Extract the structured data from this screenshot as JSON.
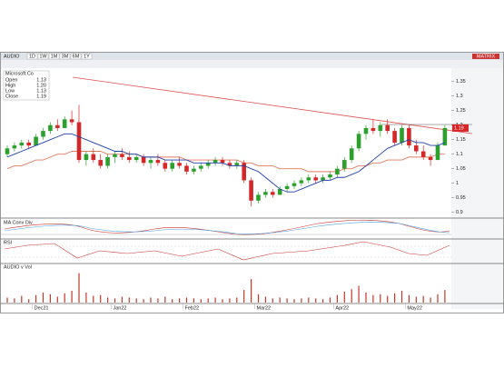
{
  "toolbar": {
    "symbol": "AUDIO",
    "buttons": [
      "1D",
      "1W",
      "1M",
      "3M",
      "6M",
      "1Y"
    ],
    "right": "MATRIX"
  },
  "info_box": {
    "title": "Microsoft Co",
    "rows": [
      [
        "Open",
        "1.13"
      ],
      [
        "High",
        "1.20"
      ],
      [
        "Low",
        "1.13"
      ],
      [
        "Close",
        "1.19"
      ]
    ]
  },
  "price_chart": {
    "ylim": [
      0.88,
      1.39
    ],
    "yticks": [
      0.9,
      0.95,
      1,
      1.05,
      1.1,
      1.15,
      1.2,
      1.25,
      1.3,
      1.35
    ],
    "last_price": "1.19",
    "candles": [
      [
        1.1,
        1.13,
        1.09,
        1.12
      ],
      [
        1.12,
        1.14,
        1.11,
        1.13
      ],
      [
        1.13,
        1.15,
        1.12,
        1.14
      ],
      [
        1.14,
        1.15,
        1.12,
        1.13
      ],
      [
        1.13,
        1.17,
        1.13,
        1.16
      ],
      [
        1.16,
        1.19,
        1.15,
        1.18
      ],
      [
        1.18,
        1.21,
        1.17,
        1.2
      ],
      [
        1.2,
        1.22,
        1.18,
        1.19
      ],
      [
        1.19,
        1.23,
        1.19,
        1.22
      ],
      [
        1.22,
        1.25,
        1.2,
        1.21
      ],
      [
        1.21,
        1.27,
        1.07,
        1.08
      ],
      [
        1.08,
        1.11,
        1.06,
        1.1
      ],
      [
        1.1,
        1.12,
        1.07,
        1.08
      ],
      [
        1.08,
        1.1,
        1.05,
        1.06
      ],
      [
        1.06,
        1.1,
        1.05,
        1.09
      ],
      [
        1.09,
        1.11,
        1.07,
        1.1
      ],
      [
        1.1,
        1.12,
        1.08,
        1.09
      ],
      [
        1.09,
        1.11,
        1.07,
        1.08
      ],
      [
        1.08,
        1.1,
        1.07,
        1.09
      ],
      [
        1.09,
        1.1,
        1.06,
        1.07
      ],
      [
        1.07,
        1.09,
        1.05,
        1.08
      ],
      [
        1.08,
        1.1,
        1.06,
        1.07
      ],
      [
        1.07,
        1.08,
        1.04,
        1.05
      ],
      [
        1.05,
        1.08,
        1.04,
        1.07
      ],
      [
        1.07,
        1.09,
        1.05,
        1.06
      ],
      [
        1.06,
        1.07,
        1.03,
        1.04
      ],
      [
        1.04,
        1.06,
        1.03,
        1.05
      ],
      [
        1.05,
        1.07,
        1.04,
        1.06
      ],
      [
        1.06,
        1.08,
        1.05,
        1.07
      ],
      [
        1.07,
        1.09,
        1.06,
        1.08
      ],
      [
        1.08,
        1.09,
        1.06,
        1.07
      ],
      [
        1.07,
        1.08,
        1.05,
        1.06
      ],
      [
        1.06,
        1.08,
        1.05,
        1.07
      ],
      [
        1.07,
        1.08,
        1.0,
        1.01
      ],
      [
        1.01,
        1.02,
        0.92,
        0.94
      ],
      [
        0.94,
        0.97,
        0.93,
        0.96
      ],
      [
        0.96,
        0.98,
        0.95,
        0.97
      ],
      [
        0.97,
        0.98,
        0.95,
        0.96
      ],
      [
        0.96,
        0.99,
        0.96,
        0.98
      ],
      [
        0.98,
        1.0,
        0.97,
        0.99
      ],
      [
        0.99,
        1.01,
        0.98,
        1.0
      ],
      [
        1.0,
        1.02,
        0.99,
        1.01
      ],
      [
        1.01,
        1.03,
        1.0,
        1.02
      ],
      [
        1.02,
        1.03,
        1.0,
        1.01
      ],
      [
        1.01,
        1.03,
        1.0,
        1.02
      ],
      [
        1.02,
        1.04,
        1.01,
        1.03
      ],
      [
        1.03,
        1.06,
        1.02,
        1.05
      ],
      [
        1.05,
        1.09,
        1.04,
        1.08
      ],
      [
        1.08,
        1.13,
        1.07,
        1.12
      ],
      [
        1.12,
        1.18,
        1.11,
        1.17
      ],
      [
        1.17,
        1.2,
        1.15,
        1.19
      ],
      [
        1.19,
        1.22,
        1.17,
        1.18
      ],
      [
        1.18,
        1.21,
        1.16,
        1.2
      ],
      [
        1.2,
        1.22,
        1.17,
        1.18
      ],
      [
        1.18,
        1.19,
        1.13,
        1.14
      ],
      [
        1.14,
        1.2,
        1.13,
        1.19
      ],
      [
        1.19,
        1.2,
        1.12,
        1.13
      ],
      [
        1.13,
        1.15,
        1.1,
        1.11
      ],
      [
        1.11,
        1.13,
        1.08,
        1.09
      ],
      [
        1.09,
        1.1,
        1.06,
        1.08
      ],
      [
        1.08,
        1.14,
        1.08,
        1.13
      ],
      [
        1.13,
        1.2,
        1.13,
        1.19
      ]
    ],
    "ma_short": [
      1.09,
      1.1,
      1.11,
      1.12,
      1.13,
      1.14,
      1.15,
      1.16,
      1.17,
      1.17,
      1.16,
      1.15,
      1.14,
      1.13,
      1.12,
      1.11,
      1.11,
      1.1,
      1.1,
      1.09,
      1.09,
      1.09,
      1.08,
      1.08,
      1.08,
      1.08,
      1.07,
      1.07,
      1.07,
      1.07,
      1.07,
      1.06,
      1.06,
      1.06,
      1.05,
      1.04,
      1.02,
      1.0,
      0.98,
      0.97,
      0.97,
      0.98,
      0.99,
      1.0,
      1.01,
      1.01,
      1.02,
      1.02,
      1.03,
      1.04,
      1.06,
      1.08,
      1.1,
      1.12,
      1.13,
      1.14,
      1.15,
      1.14,
      1.14,
      1.13,
      1.13,
      1.14
    ],
    "ma_long": [
      1.05,
      1.06,
      1.06,
      1.07,
      1.08,
      1.08,
      1.09,
      1.1,
      1.1,
      1.11,
      1.11,
      1.11,
      1.11,
      1.11,
      1.1,
      1.1,
      1.1,
      1.1,
      1.1,
      1.09,
      1.09,
      1.09,
      1.09,
      1.09,
      1.09,
      1.08,
      1.08,
      1.08,
      1.08,
      1.08,
      1.08,
      1.08,
      1.08,
      1.07,
      1.07,
      1.06,
      1.06,
      1.06,
      1.05,
      1.05,
      1.05,
      1.05,
      1.04,
      1.04,
      1.04,
      1.04,
      1.04,
      1.05,
      1.05,
      1.06,
      1.06,
      1.07,
      1.07,
      1.08,
      1.08,
      1.08,
      1.09,
      1.09,
      1.09,
      1.09,
      1.1,
      1.1
    ]
  },
  "macd_panel": {
    "label": "MA Conv Div"
  },
  "rsi_panel": {
    "label": "RSI"
  },
  "volume_panel": {
    "label": "AUDIO v Vol",
    "ylim": [
      0,
      4
    ],
    "values": [
      0.6,
      0.5,
      0.8,
      0.4,
      0.9,
      1.2,
      1.0,
      0.7,
      1.1,
      1.4,
      3.5,
      1.2,
      0.8,
      0.9,
      0.6,
      0.5,
      0.7,
      0.6,
      0.5,
      0.4,
      0.6,
      0.5,
      0.7,
      0.4,
      0.5,
      0.6,
      0.5,
      0.4,
      0.5,
      0.6,
      0.4,
      0.5,
      0.6,
      1.5,
      2.8,
      1.0,
      0.7,
      0.5,
      0.6,
      0.5,
      0.4,
      0.5,
      0.6,
      0.5,
      0.4,
      0.6,
      0.9,
      1.3,
      1.6,
      2.0,
      1.2,
      0.9,
      1.0,
      0.8,
      1.1,
      1.4,
      0.9,
      0.7,
      0.8,
      0.6,
      1.0,
      1.5
    ]
  },
  "date_labels": [
    "Dec21",
    "Jan22",
    "Feb22",
    "Mar22",
    "Apr22",
    "May22"
  ]
}
